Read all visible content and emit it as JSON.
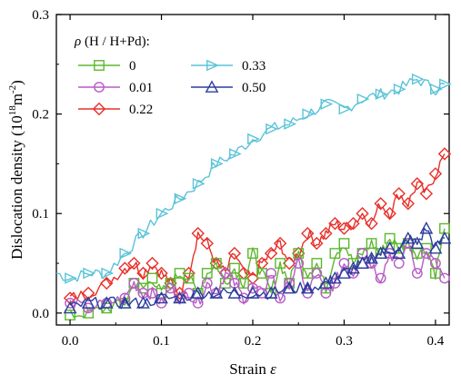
{
  "chart_data": {
    "type": "line",
    "title": "",
    "xlabel": "Strain",
    "xlabel_symbol": "ε",
    "ylabel": "Dislocation density (10",
    "ylabel_exp": "18",
    "ylabel_unit": "m",
    "ylabel_unit_exp": "-2",
    "ylabel_close": ")",
    "xlim": [
      -0.015,
      0.415
    ],
    "ylim": [
      -0.012,
      0.3
    ],
    "xticks": [
      0.0,
      0.1,
      0.2,
      0.3,
      0.4
    ],
    "xtick_labels": [
      "0.0",
      "0.1",
      "0.2",
      "0.3",
      "0.4"
    ],
    "yticks": [
      0.0,
      0.1,
      0.2,
      0.3
    ],
    "ytick_labels": [
      "0.0",
      "0.1",
      "0.2",
      "0.3"
    ],
    "grid": false,
    "legend": {
      "placement": "top-left",
      "title_symbol": "ρ",
      "title_text": " (H / H+Pd):"
    },
    "series": [
      {
        "name": "0",
        "color": "#5cb82e",
        "marker": "square",
        "x": [
          0.0,
          0.02,
          0.04,
          0.06,
          0.07,
          0.08,
          0.09,
          0.1,
          0.11,
          0.12,
          0.13,
          0.14,
          0.15,
          0.16,
          0.17,
          0.18,
          0.19,
          0.2,
          0.21,
          0.22,
          0.23,
          0.24,
          0.25,
          0.26,
          0.27,
          0.28,
          0.29,
          0.3,
          0.31,
          0.32,
          0.33,
          0.34,
          0.35,
          0.36,
          0.37,
          0.38,
          0.39,
          0.4,
          0.41
        ],
        "y": [
          -0.002,
          0.0,
          0.005,
          0.01,
          0.03,
          0.025,
          0.035,
          0.02,
          0.03,
          0.04,
          0.035,
          0.02,
          0.04,
          0.05,
          0.03,
          0.045,
          0.03,
          0.06,
          0.04,
          0.02,
          0.05,
          0.03,
          0.06,
          0.04,
          0.05,
          0.025,
          0.06,
          0.07,
          0.05,
          0.06,
          0.07,
          0.06,
          0.075,
          0.065,
          0.07,
          0.06,
          0.065,
          0.04,
          0.085
        ]
      },
      {
        "name": "0.01",
        "color": "#b65cc4",
        "marker": "circle",
        "x": [
          0.0,
          0.02,
          0.04,
          0.06,
          0.07,
          0.08,
          0.09,
          0.1,
          0.11,
          0.12,
          0.13,
          0.14,
          0.15,
          0.16,
          0.17,
          0.18,
          0.19,
          0.2,
          0.21,
          0.22,
          0.23,
          0.24,
          0.25,
          0.26,
          0.27,
          0.28,
          0.29,
          0.3,
          0.31,
          0.32,
          0.33,
          0.34,
          0.35,
          0.36,
          0.37,
          0.38,
          0.39,
          0.4,
          0.41
        ],
        "y": [
          0.01,
          0.005,
          0.01,
          0.015,
          0.03,
          0.02,
          0.02,
          0.01,
          0.025,
          0.015,
          0.02,
          0.01,
          0.03,
          0.02,
          0.04,
          0.03,
          0.015,
          0.025,
          0.02,
          0.04,
          0.015,
          0.03,
          0.05,
          0.02,
          0.04,
          0.02,
          0.03,
          0.05,
          0.04,
          0.06,
          0.05,
          0.035,
          0.06,
          0.05,
          0.07,
          0.04,
          0.06,
          0.05,
          0.035
        ]
      },
      {
        "name": "0.22",
        "color": "#e8302a",
        "marker": "diamond",
        "x": [
          0.0,
          0.02,
          0.04,
          0.06,
          0.07,
          0.08,
          0.09,
          0.1,
          0.11,
          0.12,
          0.13,
          0.14,
          0.15,
          0.16,
          0.17,
          0.18,
          0.19,
          0.2,
          0.21,
          0.22,
          0.23,
          0.24,
          0.25,
          0.26,
          0.27,
          0.28,
          0.29,
          0.3,
          0.31,
          0.32,
          0.33,
          0.34,
          0.35,
          0.36,
          0.37,
          0.38,
          0.39,
          0.4,
          0.41
        ],
        "y": [
          0.015,
          0.02,
          0.03,
          0.045,
          0.05,
          0.04,
          0.05,
          0.04,
          0.03,
          0.02,
          0.04,
          0.08,
          0.07,
          0.05,
          0.04,
          0.06,
          0.04,
          0.035,
          0.05,
          0.06,
          0.07,
          0.05,
          0.06,
          0.08,
          0.07,
          0.08,
          0.09,
          0.085,
          0.09,
          0.1,
          0.09,
          0.11,
          0.1,
          0.12,
          0.11,
          0.13,
          0.12,
          0.14,
          0.16
        ]
      },
      {
        "name": "0.33",
        "color": "#5bc3d8",
        "marker": "triangle-right",
        "x": [
          -0.015,
          0.0,
          0.02,
          0.04,
          0.06,
          0.08,
          0.1,
          0.12,
          0.14,
          0.16,
          0.18,
          0.2,
          0.22,
          0.24,
          0.26,
          0.28,
          0.3,
          0.32,
          0.34,
          0.36,
          0.38,
          0.4,
          0.41
        ],
        "y": [
          0.04,
          0.035,
          0.04,
          0.04,
          0.06,
          0.08,
          0.1,
          0.115,
          0.13,
          0.15,
          0.16,
          0.175,
          0.185,
          0.19,
          0.2,
          0.21,
          0.205,
          0.215,
          0.22,
          0.225,
          0.235,
          0.225,
          0.23
        ]
      },
      {
        "name": "0.50",
        "color": "#2b3e9e",
        "marker": "triangle-up",
        "x": [
          0.0,
          0.02,
          0.04,
          0.06,
          0.08,
          0.1,
          0.12,
          0.14,
          0.16,
          0.18,
          0.2,
          0.22,
          0.24,
          0.26,
          0.28,
          0.29,
          0.3,
          0.31,
          0.32,
          0.33,
          0.34,
          0.35,
          0.36,
          0.37,
          0.38,
          0.39,
          0.4,
          0.41
        ],
        "y": [
          0.005,
          0.01,
          0.01,
          0.01,
          0.01,
          0.015,
          0.015,
          0.02,
          0.02,
          0.02,
          0.02,
          0.02,
          0.025,
          0.025,
          0.03,
          0.035,
          0.04,
          0.045,
          0.05,
          0.055,
          0.06,
          0.065,
          0.06,
          0.075,
          0.07,
          0.085,
          0.065,
          0.075
        ]
      }
    ]
  }
}
